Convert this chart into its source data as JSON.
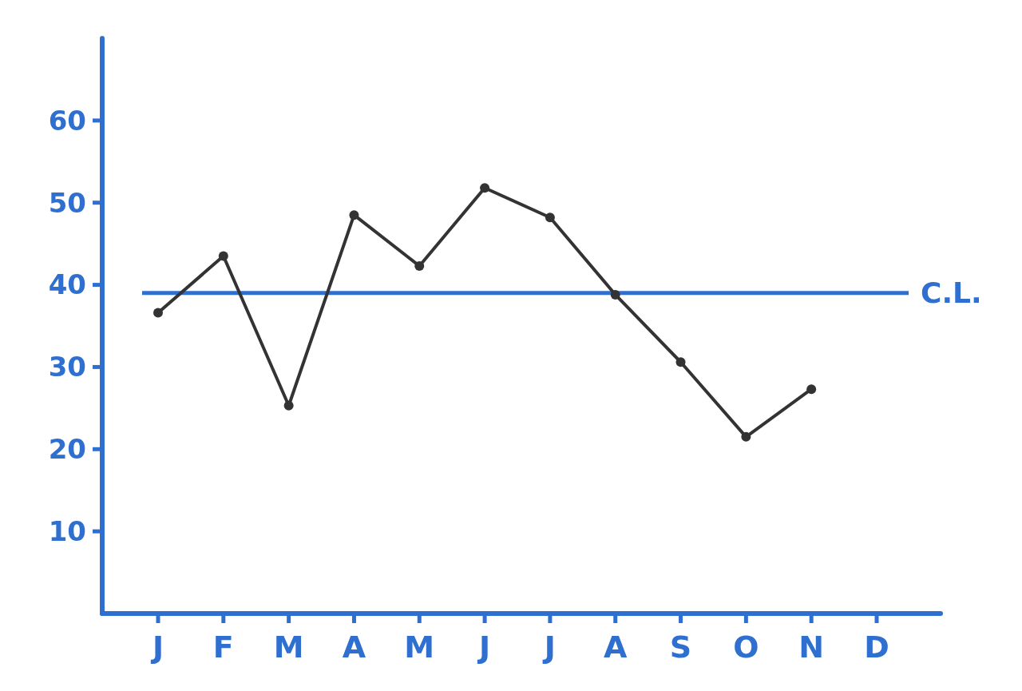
{
  "chart_data": {
    "type": "line",
    "categories": [
      "J",
      "F",
      "M",
      "A",
      "M",
      "J",
      "J",
      "A",
      "S",
      "O",
      "N",
      "D"
    ],
    "series": [
      {
        "color": "#333333",
        "values": [
          36.6,
          43.5,
          25.3,
          48.5,
          42.3,
          51.8,
          48.2,
          38.8,
          30.6,
          21.5,
          27.3,
          null
        ]
      }
    ],
    "ylim": [
      0,
      70
    ],
    "yticks": [
      10,
      20,
      30,
      40,
      50,
      60
    ],
    "marker": "circle",
    "grid": false,
    "ref_lines": [
      {
        "axis": "y",
        "value": 39,
        "label": "C.L.",
        "color": "#2f6fd0"
      }
    ]
  }
}
